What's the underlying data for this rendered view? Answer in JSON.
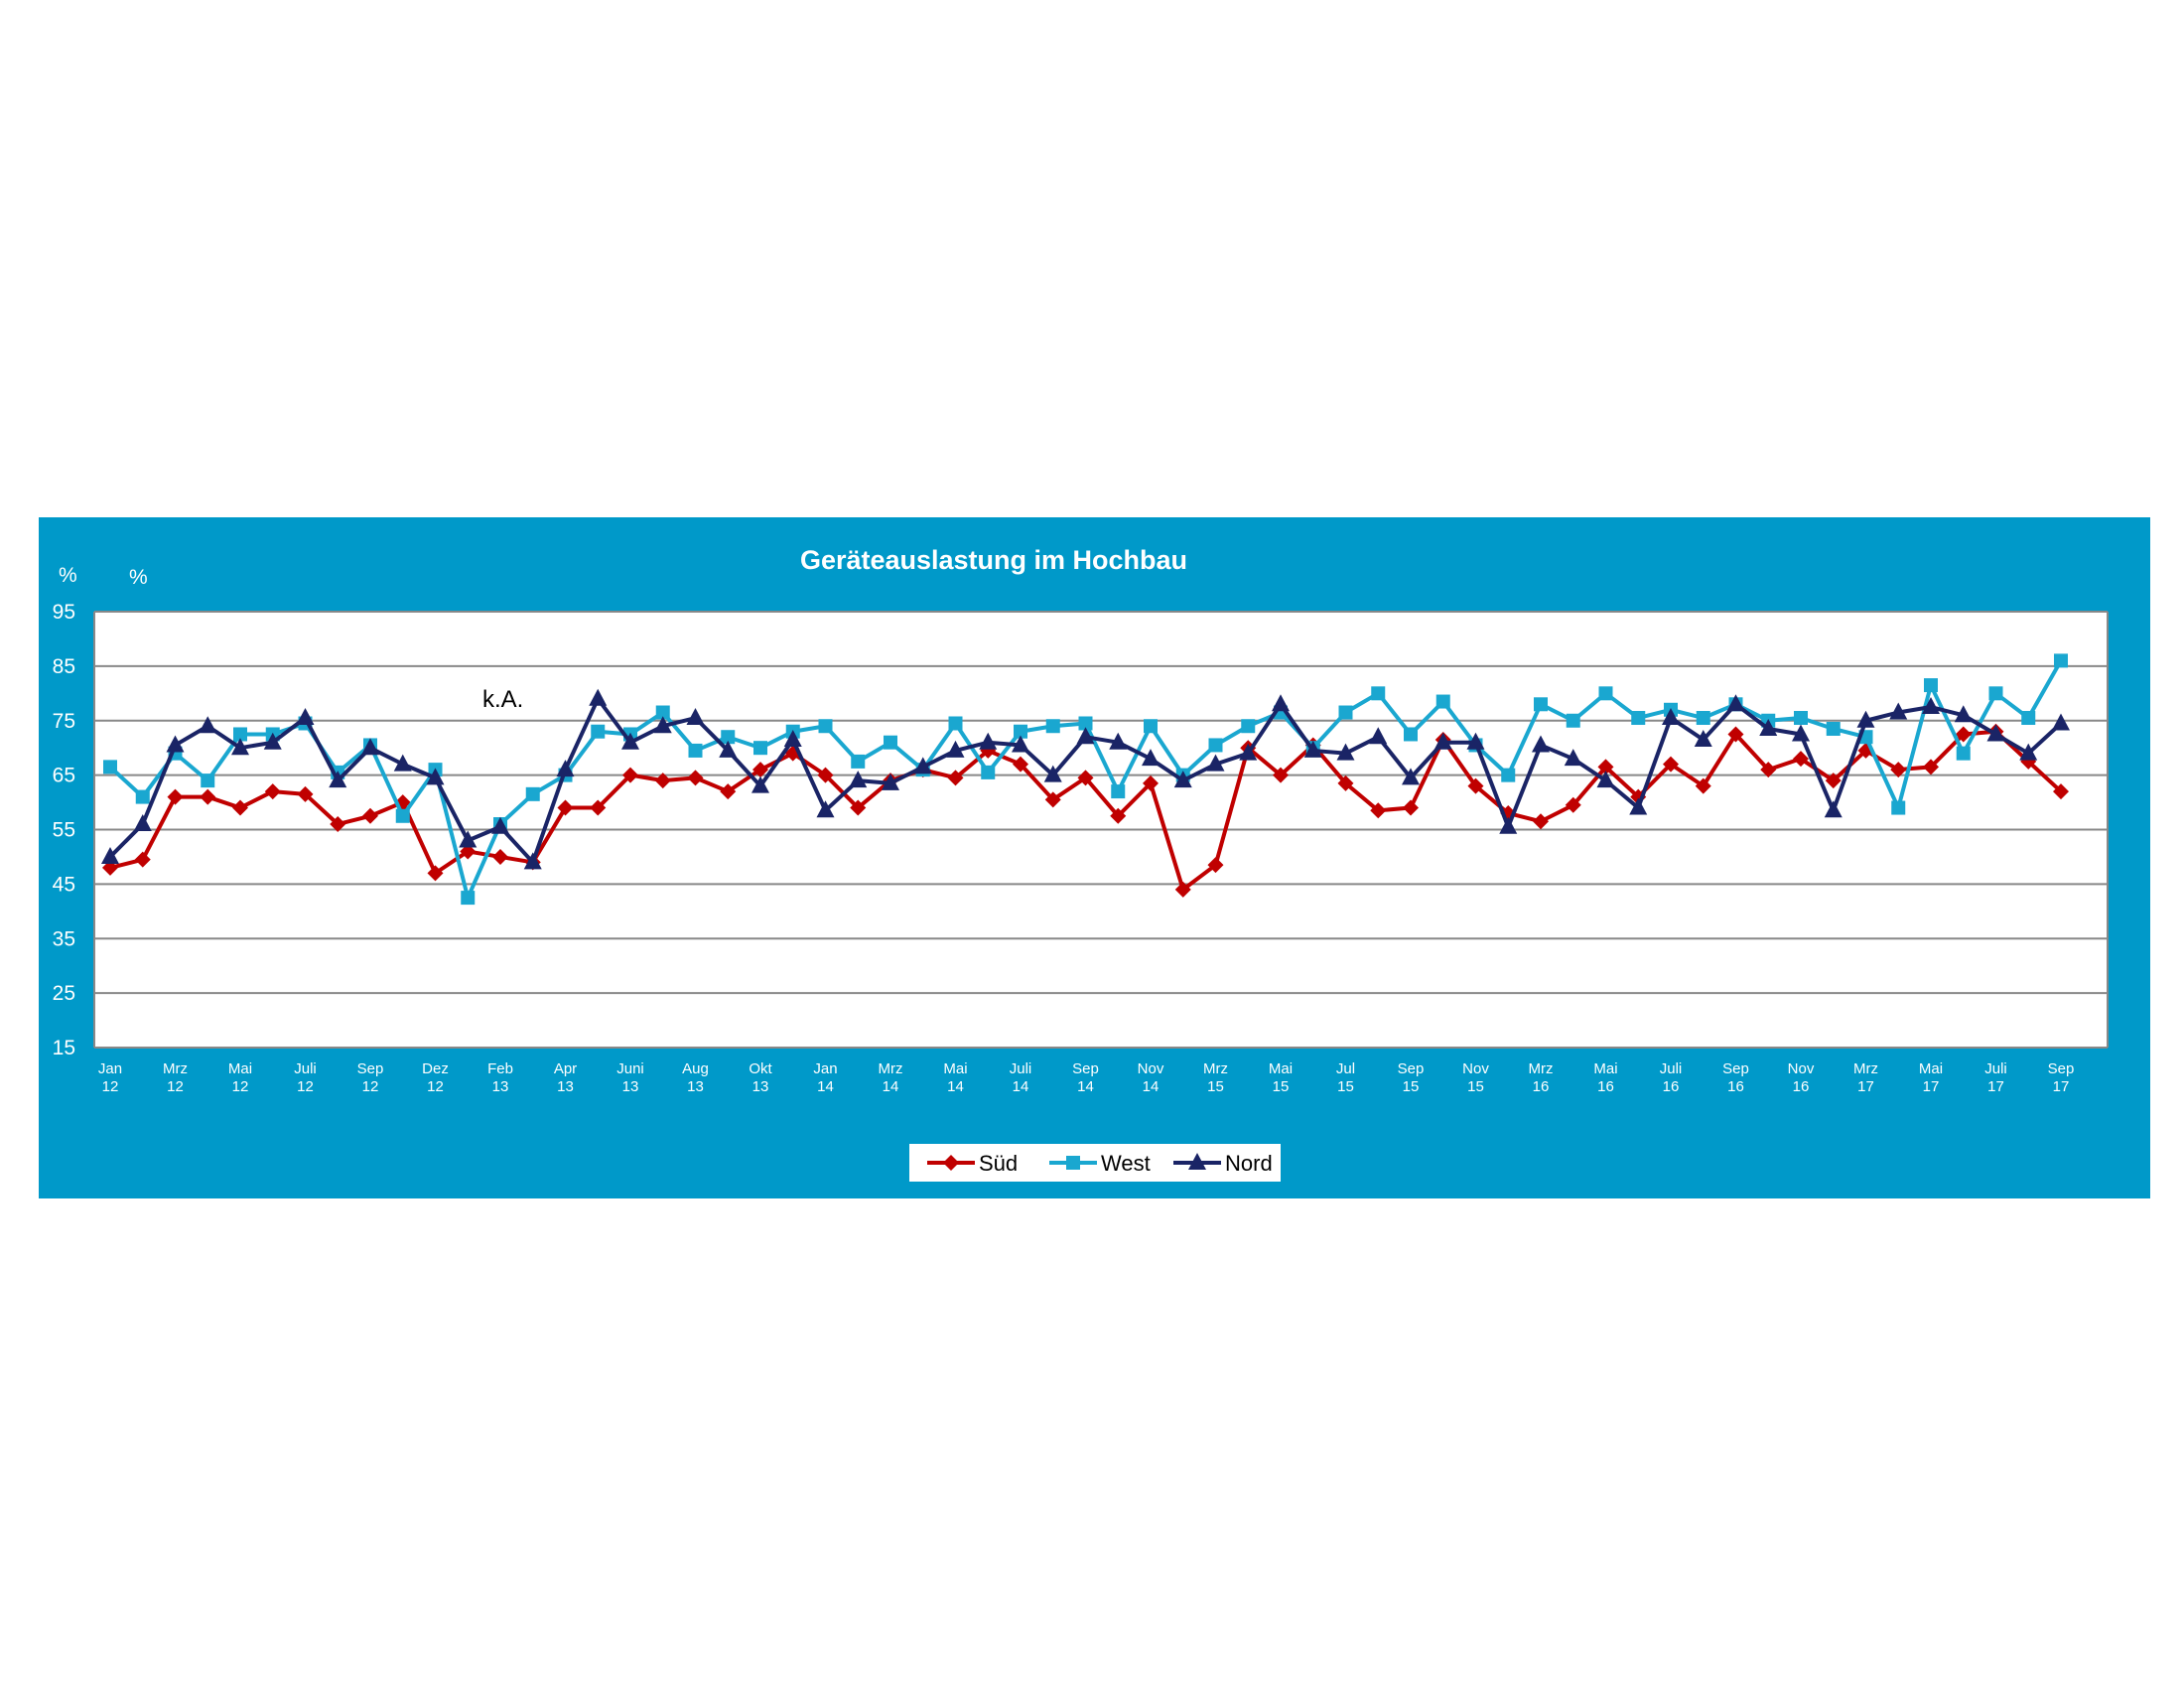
{
  "chart_data": {
    "type": "line",
    "title": "Geräteauslastung im Hochbau",
    "units_left": [
      "%",
      "%"
    ],
    "ylim": [
      15,
      95
    ],
    "yticks": [
      15,
      25,
      35,
      45,
      55,
      65,
      75,
      85,
      95
    ],
    "grid": true,
    "legend_position": "bottom-center",
    "annotation": "k.A.",
    "x_tick_labels": [
      {
        "m": "Jan",
        "y": "12"
      },
      {
        "m": "Mrz",
        "y": "12"
      },
      {
        "m": "Mai",
        "y": "12"
      },
      {
        "m": "Juli",
        "y": "12"
      },
      {
        "m": "Sep",
        "y": "12"
      },
      {
        "m": "Dez",
        "y": "12"
      },
      {
        "m": "Feb",
        "y": "13"
      },
      {
        "m": "Apr",
        "y": "13"
      },
      {
        "m": "Juni",
        "y": "13"
      },
      {
        "m": "Aug",
        "y": "13"
      },
      {
        "m": "Okt",
        "y": "13"
      },
      {
        "m": "Jan",
        "y": "14"
      },
      {
        "m": "Mrz",
        "y": "14"
      },
      {
        "m": "Mai",
        "y": "14"
      },
      {
        "m": "Juli",
        "y": "14"
      },
      {
        "m": "Sep",
        "y": "14"
      },
      {
        "m": "Nov",
        "y": "14"
      },
      {
        "m": "Mrz",
        "y": "15"
      },
      {
        "m": "Mai",
        "y": "15"
      },
      {
        "m": "Jul",
        "y": "15"
      },
      {
        "m": "Sep",
        "y": "15"
      },
      {
        "m": "Nov",
        "y": "15"
      },
      {
        "m": "Mrz",
        "y": "16"
      },
      {
        "m": "Mai",
        "y": "16"
      },
      {
        "m": "Juli",
        "y": "16"
      },
      {
        "m": "Sep",
        "y": "16"
      },
      {
        "m": "Nov",
        "y": "16"
      },
      {
        "m": "Mrz",
        "y": "17"
      },
      {
        "m": "Mai",
        "y": "17"
      },
      {
        "m": "Juli",
        "y": "17"
      },
      {
        "m": "Sep",
        "y": "17"
      }
    ],
    "series": [
      {
        "name": "Süd",
        "color": "#c00000",
        "marker": "diamond",
        "values": [
          48,
          49.5,
          61,
          61,
          59,
          62,
          61.5,
          56,
          57.5,
          60,
          47,
          51,
          50,
          49,
          59,
          59,
          65,
          64,
          64.5,
          62,
          66,
          69,
          65,
          59,
          64,
          66,
          64.5,
          69.5,
          67,
          60.5,
          64.5,
          57.5,
          63.5,
          44,
          48.5,
          70,
          65,
          70.5,
          63.5,
          58.5,
          59,
          71.5,
          63,
          58,
          56.5,
          59.5,
          66.5,
          61,
          67,
          63,
          72.5,
          66,
          68,
          64,
          69.5,
          66,
          66.5,
          72.5,
          73,
          67.5,
          62
        ]
      },
      {
        "name": "West",
        "color": "#1aa7d0",
        "marker": "square",
        "values": [
          66.5,
          61,
          69,
          64,
          72.5,
          72.5,
          74.5,
          65.5,
          70.5,
          57.5,
          66,
          42.5,
          56,
          61.5,
          65,
          73,
          72.5,
          76.5,
          69.5,
          72,
          70,
          73,
          74,
          67.5,
          71,
          66,
          74.5,
          65.5,
          73,
          74,
          74.5,
          62,
          74,
          65,
          70.5,
          74,
          76.5,
          70,
          76.5,
          80,
          72.5,
          78.5,
          70.5,
          65,
          78,
          75,
          80,
          75.5,
          77,
          75.5,
          78,
          75,
          75.5,
          73.5,
          72,
          59,
          81.5,
          69,
          80,
          75.5,
          86
        ]
      },
      {
        "name": "Nord",
        "color": "#1a2466",
        "marker": "triangle",
        "values": [
          50,
          56,
          70.5,
          74,
          70,
          71,
          75.5,
          64,
          70,
          67,
          64.5,
          53,
          55.5,
          49,
          66,
          79,
          71,
          74,
          75.5,
          69.5,
          63,
          71.5,
          58.5,
          64,
          63.5,
          66.5,
          69.5,
          71,
          70.5,
          65,
          72,
          71,
          68,
          64,
          67,
          69,
          78,
          69.5,
          69,
          72,
          64.5,
          71,
          71,
          55.5,
          70.5,
          68,
          64,
          59,
          75.5,
          71.5,
          78,
          73.5,
          72.5,
          58.5,
          75,
          76.5,
          77.5,
          76,
          72.5,
          69,
          74.5
        ]
      }
    ]
  }
}
